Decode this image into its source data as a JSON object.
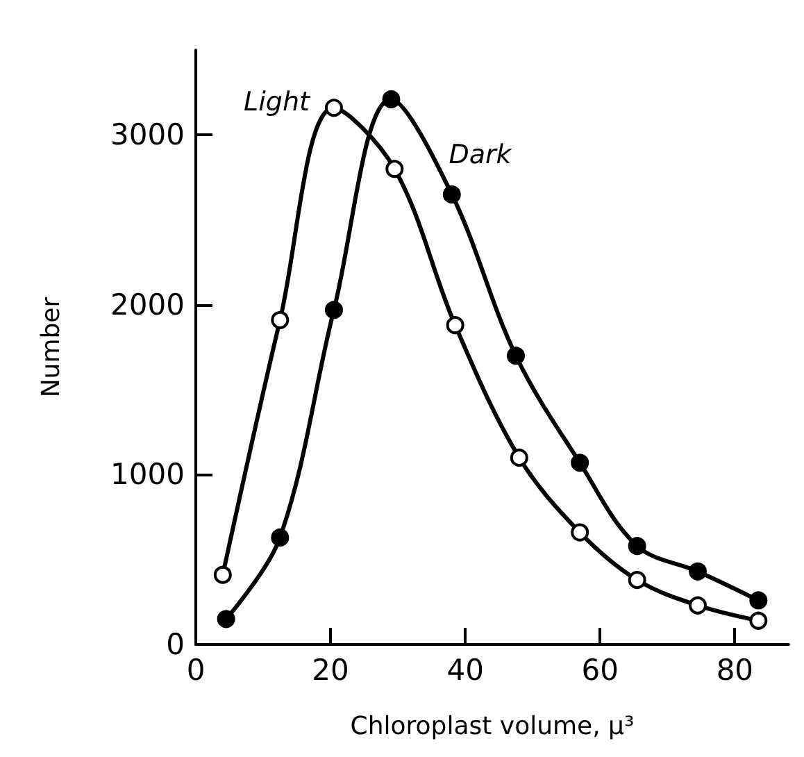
{
  "chart_data": {
    "type": "line",
    "xlabel": "Chloroplast volume, μ³",
    "ylabel": "Number",
    "xlim": [
      0,
      88
    ],
    "xticks": [
      0,
      20,
      40,
      60,
      80
    ],
    "ylim": [
      0,
      3500
    ],
    "yticks": [
      0,
      1000,
      2000,
      3000
    ],
    "grid": false,
    "legend": false,
    "marker": "circle",
    "line_style": "solid",
    "series": [
      {
        "name": "Light",
        "color": "#000000",
        "x": [
          4,
          12.5,
          20.5,
          29.5,
          38.5,
          48,
          57,
          65.5,
          74.5,
          83.5
        ],
        "values": [
          410,
          1910,
          3160,
          2800,
          1880,
          1100,
          660,
          380,
          230,
          140
        ]
      },
      {
        "name": "Dark",
        "color": "#000000",
        "x": [
          4.5,
          12.5,
          20.5,
          29,
          38,
          47.5,
          57,
          65.5,
          74.5,
          83.5
        ],
        "values": [
          150,
          630,
          1970,
          3210,
          2650,
          1700,
          1070,
          580,
          430,
          260
        ]
      }
    ]
  }
}
